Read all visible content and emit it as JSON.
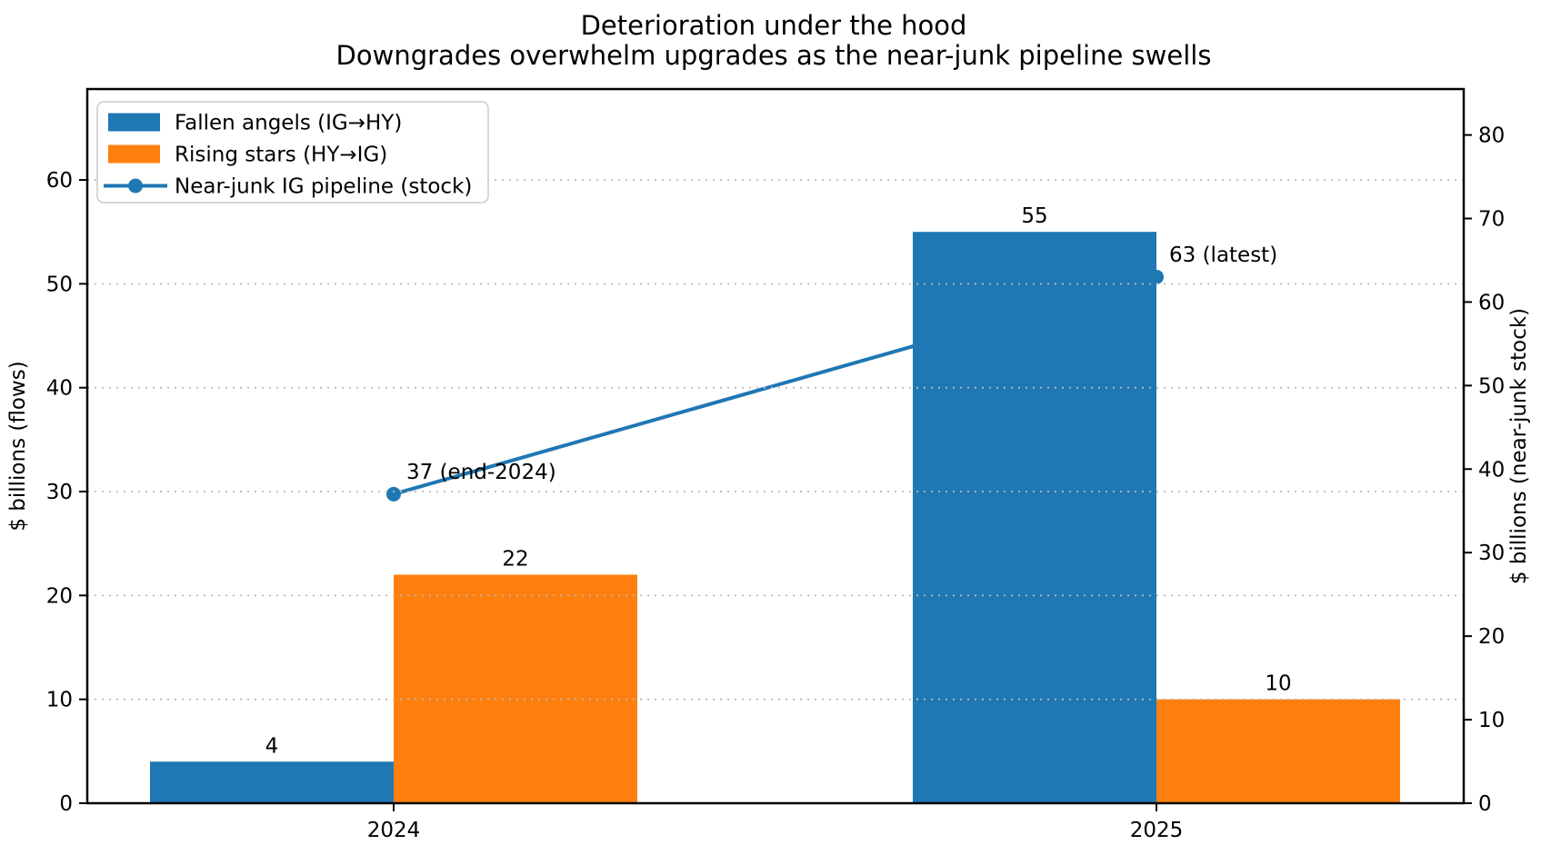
{
  "title": {
    "line1": "Deterioration under the hood",
    "line2": "Downgrades overwhelm upgrades as the near-junk pipeline swells"
  },
  "colors": {
    "blue": "#1f77b4",
    "orange": "#ff7f0e",
    "grid": "#bbbbbb",
    "spine": "#000000",
    "legend_border": "#cccccc"
  },
  "chart_data": {
    "type": "bar",
    "categories": [
      "2024",
      "2025"
    ],
    "series": [
      {
        "name": "Fallen angels (IG→HY)",
        "type": "bar",
        "axis": "left",
        "color": "#1f77b4",
        "values": [
          4,
          55
        ],
        "value_labels": [
          "4",
          "55"
        ]
      },
      {
        "name": "Rising stars (HY→IG)",
        "type": "bar",
        "axis": "left",
        "color": "#ff7f0e",
        "values": [
          22,
          10
        ],
        "value_labels": [
          "22",
          "10"
        ]
      },
      {
        "name": "Near-junk IG pipeline (stock)",
        "type": "line",
        "axis": "right",
        "color": "#1f77b4",
        "marker": "circle",
        "values": [
          37,
          63
        ],
        "point_labels": [
          "37 (end-2024)",
          "63 (latest)"
        ]
      }
    ],
    "x_axis": {
      "tick_labels": [
        "2024",
        "2025"
      ]
    },
    "left_axis": {
      "label": "$ billions (flows)",
      "ticks": [
        0,
        10,
        20,
        30,
        40,
        50,
        60
      ],
      "range": [
        0,
        68.75
      ]
    },
    "right_axis": {
      "label": "$ billions (near-junk stock)",
      "ticks": [
        0,
        10,
        20,
        30,
        40,
        50,
        60,
        70,
        80
      ],
      "range": [
        0,
        85.5
      ]
    },
    "grid": {
      "axis": "y",
      "style": "dotted",
      "on_ticks": "left"
    },
    "legend": {
      "position": "upper left"
    }
  }
}
